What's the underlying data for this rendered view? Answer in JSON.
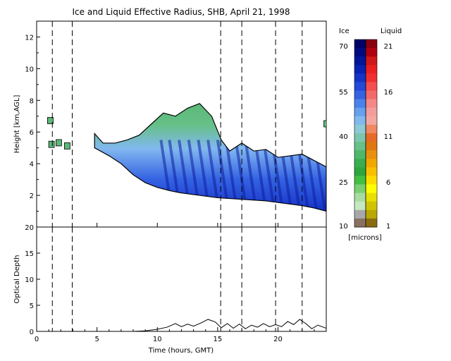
{
  "chart_data": [
    {
      "type": "heatmap",
      "title": "Ice and Liquid Effective Radius, SHB, April 21, 1998",
      "xlabel": "",
      "ylabel": "Height [km,AGL]",
      "xlim": [
        0,
        24
      ],
      "ylim": [
        0,
        13
      ],
      "yticks": [
        "2",
        "4",
        "6",
        "8",
        "10",
        "12"
      ],
      "vertical_markers_hours": [
        1.3,
        2.95,
        15.25,
        17.0,
        19.8,
        22.0
      ],
      "cloud_base_km": [
        {
          "x": 4.8,
          "y": 5.0
        },
        {
          "x": 6.0,
          "y": 4.5
        },
        {
          "x": 7.0,
          "y": 4.0
        },
        {
          "x": 8.0,
          "y": 3.3
        },
        {
          "x": 9.0,
          "y": 2.8
        },
        {
          "x": 10.0,
          "y": 2.5
        },
        {
          "x": 11.0,
          "y": 2.3
        },
        {
          "x": 12.0,
          "y": 2.15
        },
        {
          "x": 13.0,
          "y": 2.05
        },
        {
          "x": 14.0,
          "y": 1.95
        },
        {
          "x": 15.0,
          "y": 1.85
        },
        {
          "x": 16.0,
          "y": 1.8
        },
        {
          "x": 17.0,
          "y": 1.75
        },
        {
          "x": 18.0,
          "y": 1.7
        },
        {
          "x": 19.0,
          "y": 1.65
        },
        {
          "x": 20.0,
          "y": 1.55
        },
        {
          "x": 21.0,
          "y": 1.45
        },
        {
          "x": 22.0,
          "y": 1.35
        },
        {
          "x": 23.0,
          "y": 1.2
        },
        {
          "x": 24.0,
          "y": 1.0
        }
      ],
      "cloud_top_km": [
        {
          "x": 4.8,
          "y": 5.9
        },
        {
          "x": 5.5,
          "y": 5.3
        },
        {
          "x": 6.5,
          "y": 5.3
        },
        {
          "x": 7.5,
          "y": 5.5
        },
        {
          "x": 8.5,
          "y": 5.8
        },
        {
          "x": 9.5,
          "y": 6.5
        },
        {
          "x": 10.5,
          "y": 7.2
        },
        {
          "x": 11.5,
          "y": 7.0
        },
        {
          "x": 12.5,
          "y": 7.5
        },
        {
          "x": 13.5,
          "y": 7.8
        },
        {
          "x": 14.5,
          "y": 7.0
        },
        {
          "x": 15.3,
          "y": 5.5
        },
        {
          "x": 16.0,
          "y": 4.8
        },
        {
          "x": 17.0,
          "y": 5.3
        },
        {
          "x": 18.0,
          "y": 4.8
        },
        {
          "x": 19.0,
          "y": 4.9
        },
        {
          "x": 20.0,
          "y": 4.4
        },
        {
          "x": 21.0,
          "y": 4.5
        },
        {
          "x": 22.0,
          "y": 4.6
        },
        {
          "x": 23.0,
          "y": 4.2
        },
        {
          "x": 24.0,
          "y": 3.8
        }
      ],
      "colorbar": {
        "ice_label": "Ice",
        "liquid_label": "Liquid",
        "unit_label": "[microns]",
        "ice_ticks": [
          "70",
          "55",
          "40",
          "25",
          "10"
        ],
        "liquid_ticks": [
          "21",
          "16",
          "11",
          "6",
          "1"
        ],
        "ice_colors": [
          "#000066",
          "#000a80",
          "#00159a",
          "#0a22b4",
          "#1633c8",
          "#2448d8",
          "#3563e2",
          "#4b82ea",
          "#66a0ee",
          "#82b8f0",
          "#8ecad6",
          "#7cc6ae",
          "#66c088",
          "#4fb868",
          "#3aae4e",
          "#2ea63c",
          "#44c040",
          "#78d070",
          "#a8dca0",
          "#c6e8c0",
          "#a8a8a8",
          "#8a7060"
        ],
        "liquid_colors": [
          "#8a0010",
          "#b00010",
          "#d01818",
          "#e82020",
          "#f03030",
          "#f45050",
          "#f46a6a",
          "#f48888",
          "#f29c9c",
          "#f2a8a0",
          "#f08860",
          "#e86a28",
          "#e07810",
          "#e89010",
          "#f0a800",
          "#f8c000",
          "#ffdc00",
          "#ffff00",
          "#e8e000",
          "#d0c400",
          "#b8a800",
          "#8a6c10"
        ]
      }
    },
    {
      "type": "line",
      "title": "",
      "xlabel": "Time (hours, GMT)",
      "ylabel": "Optical Depth",
      "xlim": [
        0,
        24
      ],
      "ylim": [
        0,
        20
      ],
      "xticks": [
        "0",
        "5",
        "10",
        "15",
        "20"
      ],
      "yticks": [
        "0",
        "5",
        "10",
        "15",
        "20"
      ],
      "vertical_markers_hours": [
        1.3,
        2.95,
        15.25,
        17.0,
        19.8,
        22.0
      ],
      "series": [
        {
          "points": [
            {
              "x": 4.8,
              "y": 0
            },
            {
              "x": 8.0,
              "y": 0
            },
            {
              "x": 9.0,
              "y": 0.1
            },
            {
              "x": 10.0,
              "y": 0.4
            },
            {
              "x": 10.8,
              "y": 0.8
            },
            {
              "x": 11.5,
              "y": 1.5
            },
            {
              "x": 12.0,
              "y": 0.9
            },
            {
              "x": 12.5,
              "y": 1.4
            },
            {
              "x": 13.0,
              "y": 1.0
            },
            {
              "x": 13.6,
              "y": 1.6
            },
            {
              "x": 14.2,
              "y": 2.3
            },
            {
              "x": 14.8,
              "y": 1.8
            },
            {
              "x": 15.3,
              "y": 0.7
            },
            {
              "x": 15.8,
              "y": 1.5
            },
            {
              "x": 16.3,
              "y": 0.6
            },
            {
              "x": 16.8,
              "y": 1.4
            },
            {
              "x": 17.3,
              "y": 0.5
            },
            {
              "x": 17.8,
              "y": 1.2
            },
            {
              "x": 18.3,
              "y": 0.8
            },
            {
              "x": 18.8,
              "y": 1.5
            },
            {
              "x": 19.3,
              "y": 0.9
            },
            {
              "x": 19.8,
              "y": 1.3
            },
            {
              "x": 20.3,
              "y": 0.9
            },
            {
              "x": 20.8,
              "y": 1.9
            },
            {
              "x": 21.3,
              "y": 1.3
            },
            {
              "x": 21.8,
              "y": 2.3
            },
            {
              "x": 22.3,
              "y": 1.5
            },
            {
              "x": 22.8,
              "y": 0.5
            },
            {
              "x": 23.3,
              "y": 1.2
            },
            {
              "x": 24.0,
              "y": 0.6
            }
          ]
        }
      ]
    }
  ]
}
